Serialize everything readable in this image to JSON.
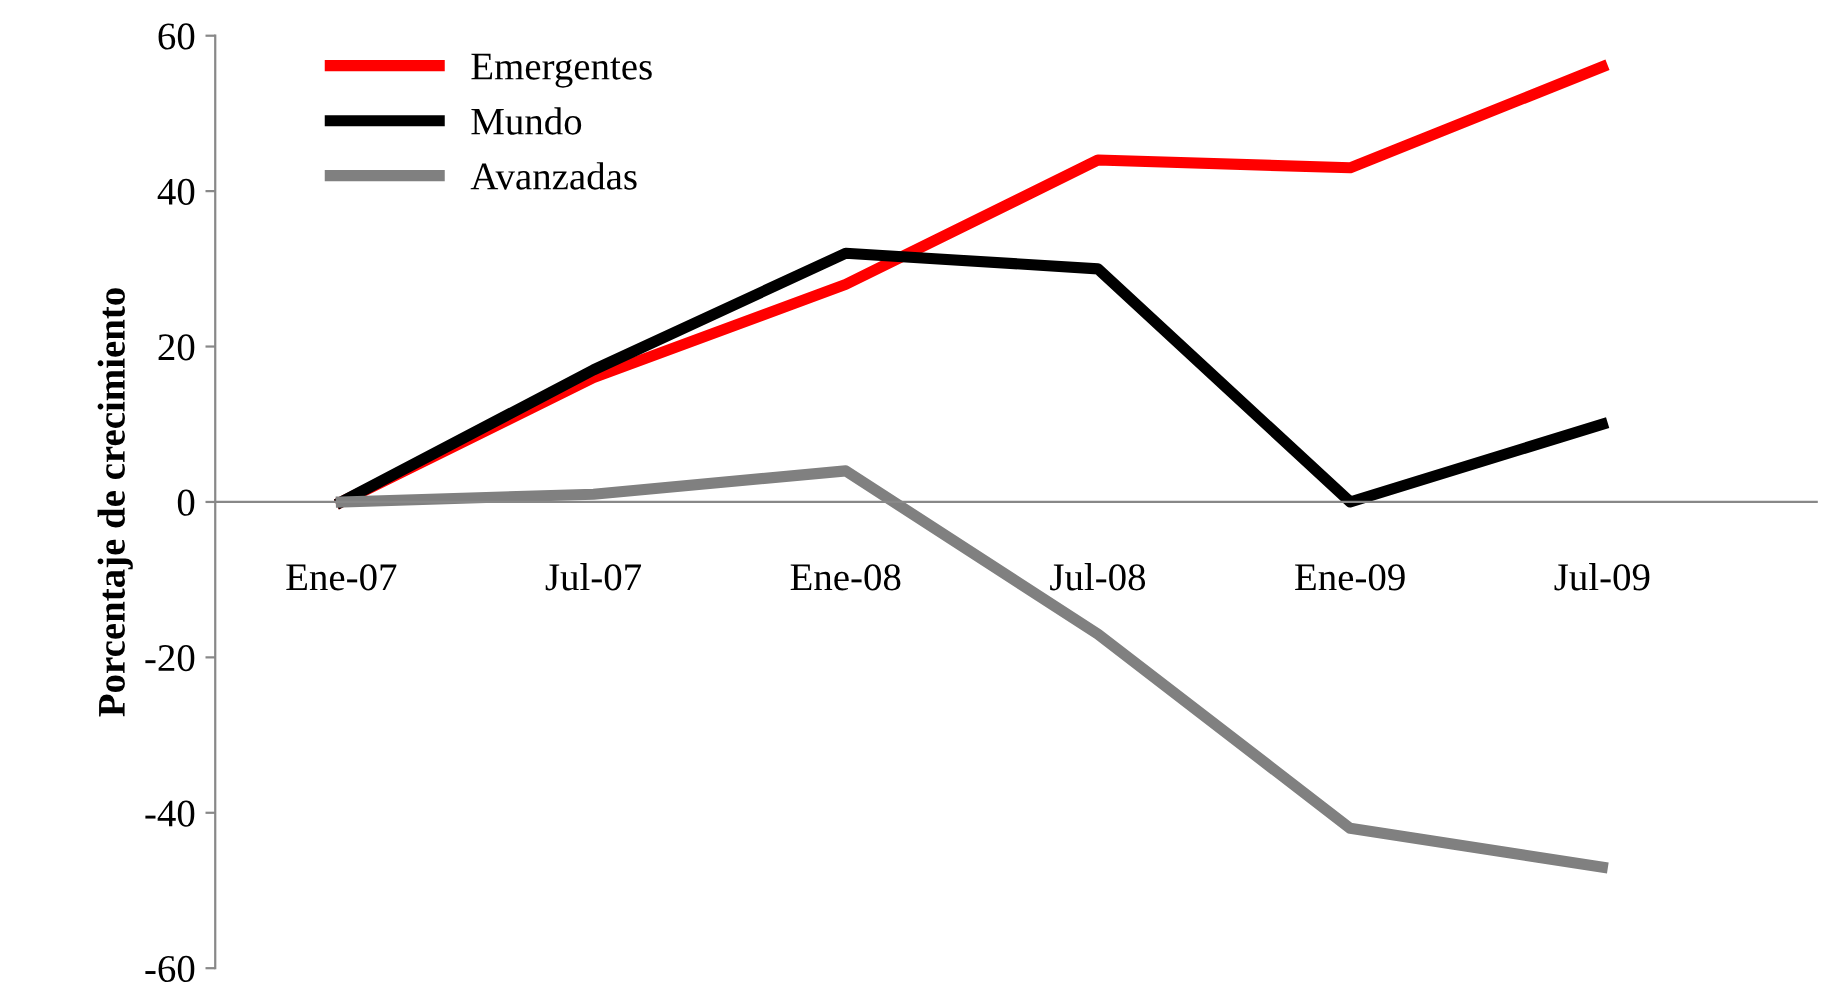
{
  "chart_data": {
    "type": "line",
    "ylabel": "Porcentaje de crecimiento",
    "categories": [
      "Ene-07",
      "Jul-07",
      "Ene-08",
      "Jul-08",
      "Ene-09",
      "Jul-09"
    ],
    "series": [
      {
        "name": "Emergentes",
        "color": "#ff0000",
        "values": [
          0,
          16,
          28,
          44,
          43,
          56
        ]
      },
      {
        "name": "Mundo",
        "color": "#000000",
        "values": [
          0,
          17,
          32,
          30,
          0,
          10
        ]
      },
      {
        "name": "Avanzadas",
        "color": "#808080",
        "values": [
          0,
          1,
          4,
          -17,
          -42,
          -47
        ]
      }
    ],
    "ylim": [
      -60,
      60
    ],
    "yticks": [
      -60,
      -40,
      -20,
      0,
      20,
      40,
      60
    ],
    "grid": false,
    "legend": "top left",
    "marker": "none",
    "line_style": "solid"
  }
}
